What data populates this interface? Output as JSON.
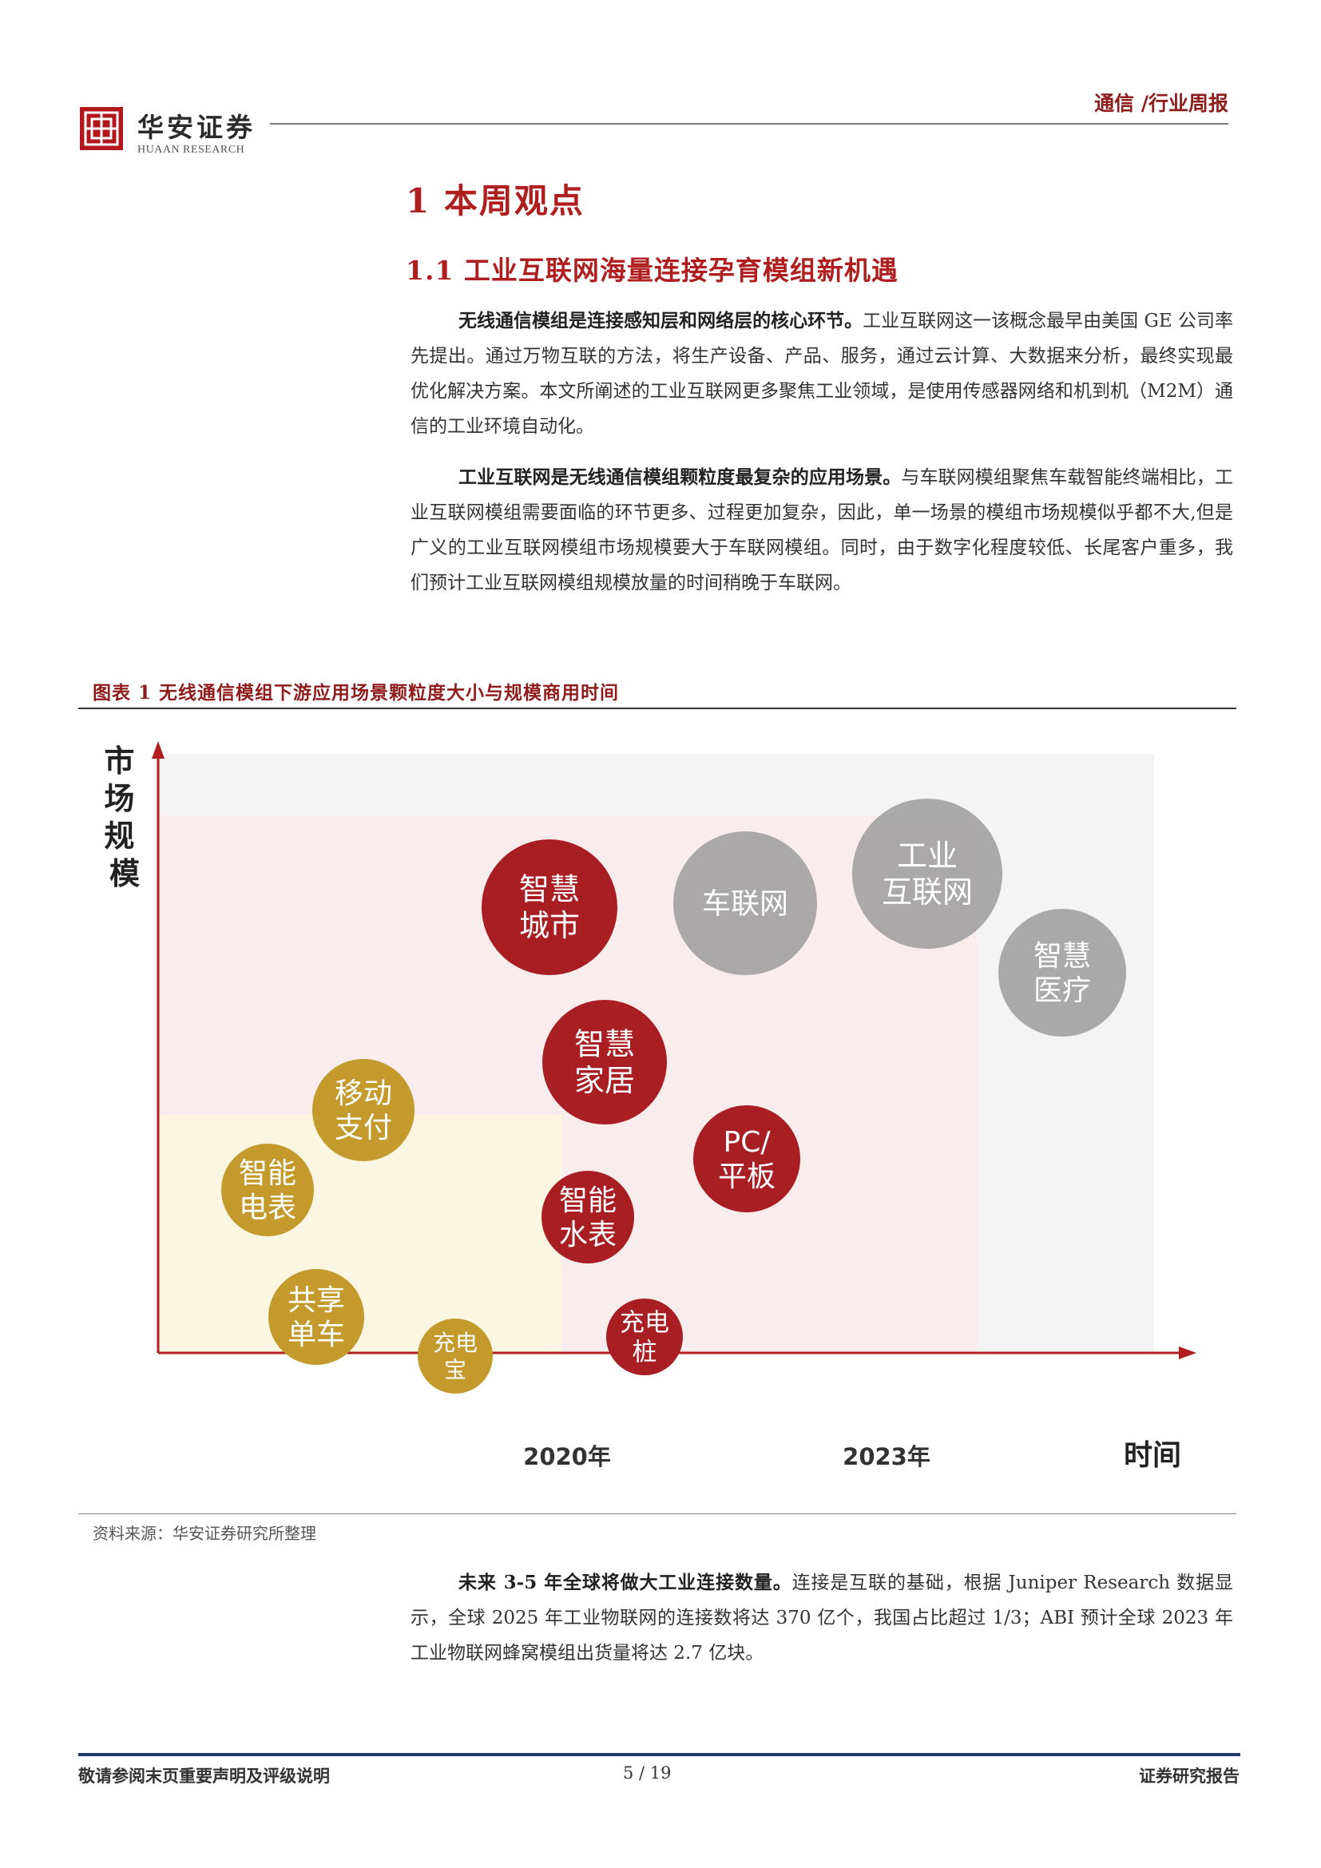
{
  "header": {
    "logo_cn": "华安证券",
    "logo_en": "HUAAN RESEARCH",
    "category": "通信 /行业周报"
  },
  "section": {
    "h1": "1 本周观点",
    "h2": "1.1 工业互联网海量连接孕育模组新机遇"
  },
  "paragraphs": [
    {
      "lead": "无线通信模组是连接感知层和网络层的核心环节。",
      "body": "工业互联网这一该概念最早由美国 GE 公司率先提出。通过万物互联的方法，将生产设备、产品、服务，通过云计算、大数据来分析，最终实现最优化解决方案。本文所阐述的工业互联网更多聚焦工业领域，是使用传感器网络和机到机（M2M）通信的工业环境自动化。"
    },
    {
      "lead": "工业互联网是无线通信模组颗粒度最复杂的应用场景。",
      "body": "与车联网模组聚焦车载智能终端相比，工业互联网模组需要面临的环节更多、过程更加复杂，因此，单一场景的模组市场规模似乎都不大,但是广义的工业互联网模组市场规模要大于车联网模组。同时，由于数字化程度较低、长尾客户重多，我们预计工业互联网模组规模放量的时间稍晚于车联网。"
    },
    {
      "lead": "未来 3-5 年全球将做大工业连接数量。",
      "body": "连接是互联的基础，根据 Juniper Research 数据显示，全球 2025 年工业物联网的连接数将达 370 亿个，我国占比超过 1/3；ABI 预计全球 2023 年工业物联网蜂窝模组出货量将达 2.7 亿块。"
    }
  ],
  "figure": {
    "caption": "图表 1 无线通信模组下游应用场景颗粒度大小与规模商用时间",
    "source": "资料来源：华安证券研究所整理"
  },
  "chart_data": {
    "type": "scatter",
    "ylabel": "市场规模",
    "xlabel": "时间",
    "x_ticks": [
      "2020年",
      "2023年"
    ],
    "colors": {
      "gold": "#c49a2c",
      "red": "#a81e22",
      "gray": "#9e9e9e"
    },
    "bubbles": [
      {
        "label": "移动支付",
        "group": "gold"
      },
      {
        "label": "智能电表",
        "group": "gold"
      },
      {
        "label": "共享单车",
        "group": "gold"
      },
      {
        "label": "充电宝",
        "group": "gold"
      },
      {
        "label": "智慧城市",
        "group": "red"
      },
      {
        "label": "智慧家居",
        "group": "red"
      },
      {
        "label": "PC/平板",
        "group": "red"
      },
      {
        "label": "智能水表",
        "group": "red"
      },
      {
        "label": "充电桩",
        "group": "red"
      },
      {
        "label": "车联网",
        "group": "gray"
      },
      {
        "label": "工业互联网",
        "group": "gray"
      },
      {
        "label": "智慧医疗",
        "group": "gray"
      }
    ]
  },
  "footer": {
    "left": "敬请参阅末页重要声明及评级说明",
    "page": "5 / 19",
    "right": "证券研究报告"
  }
}
